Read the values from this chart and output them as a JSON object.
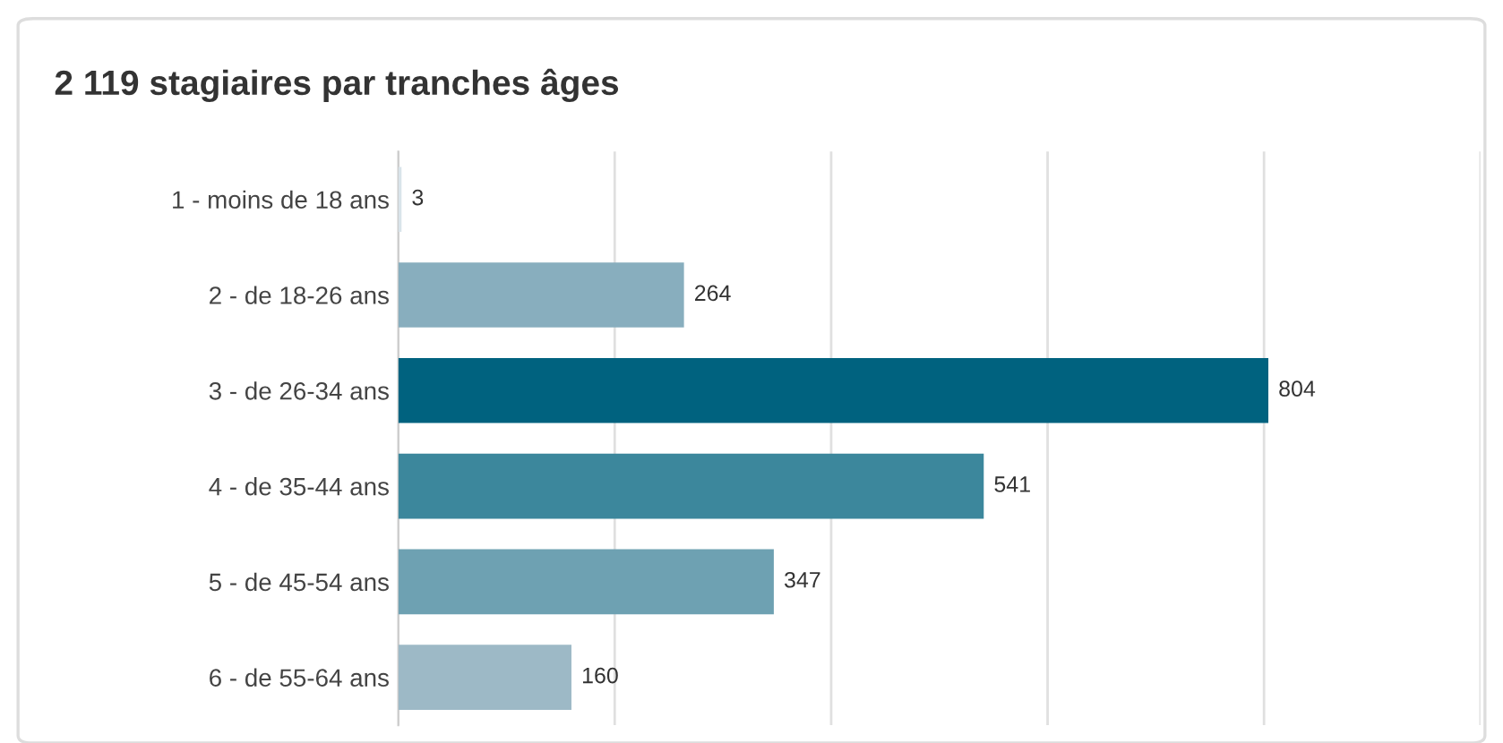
{
  "chart_data": {
    "type": "bar",
    "orientation": "horizontal",
    "title": "2 119 stagiaires par tranches âges",
    "categories": [
      "1 - moins de 18 ans",
      "2 - de 18-26 ans",
      "3 - de 26-34 ans",
      "4 - de 35-44 ans",
      "5 - de 45-54 ans",
      "6 - de 55-64 ans"
    ],
    "values": [
      3,
      264,
      804,
      541,
      347,
      160
    ],
    "colors": [
      "#d9e4ea",
      "#88aebe",
      "#00627f",
      "#3c879c",
      "#6ea1b2",
      "#9db9c6"
    ],
    "xlim": [
      0,
      1000
    ],
    "xticks": [
      {
        "value": 0,
        "label": null
      },
      {
        "value": 200,
        "label": null
      },
      {
        "value": 400,
        "label": null
      },
      {
        "value": 600,
        "label": null
      },
      {
        "value": 800,
        "label": null
      },
      {
        "value": 1000,
        "label": null
      }
    ],
    "tick_labels": "y",
    "grid": "x",
    "data_labels": true,
    "legend": false
  }
}
